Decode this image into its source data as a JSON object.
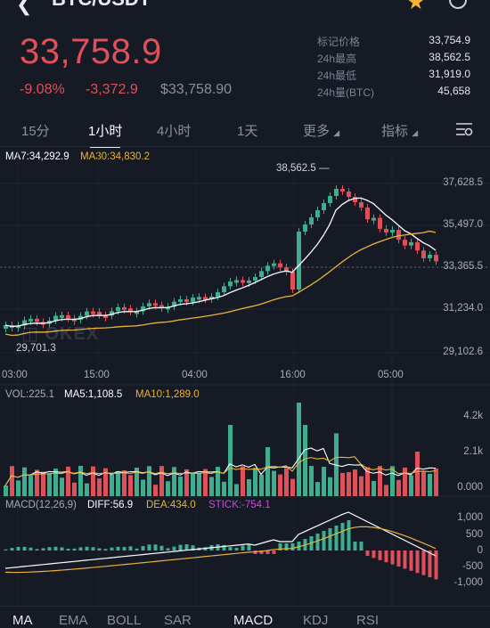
{
  "header": {
    "title": "BTC/USDT"
  },
  "price": {
    "last": "33,758.9",
    "change_pct": "-9.08%",
    "change_abs": "-3,372.9",
    "usd": "$33,758.90"
  },
  "stats": [
    {
      "label": "标记价格",
      "value": "33,754.9"
    },
    {
      "label": "24h最高",
      "value": "38,562.5"
    },
    {
      "label": "24h最低",
      "value": "31,919.0"
    },
    {
      "label": "24h量(BTC)",
      "value": "45,658"
    }
  ],
  "timeframes": [
    "15分",
    "1小时",
    "4小时",
    "1天"
  ],
  "more_label": "更多",
  "indicator_label": "指标",
  "main_chart": {
    "ma7": "MA7:34,292.9",
    "ma30": "MA30:34,830.2",
    "y_labels": [
      "37,628.5",
      "35,497.0",
      "33,365.5",
      "31,234.0",
      "29,102.6"
    ],
    "x_labels": [
      "03:00",
      "15:00",
      "04:00",
      "16:00",
      "05:00"
    ],
    "high_mark": "38,562.5",
    "low_mark": "29,701.3",
    "watermark": "OKEX"
  },
  "volume_chart": {
    "vol": "VOL:225.1",
    "ma5": "MA5:1,108.5",
    "ma10": "MA10:1,289.0",
    "y_labels": [
      "4.2k",
      "2.1k",
      "0.000"
    ]
  },
  "macd_chart": {
    "params": "MACD(12,26,9)",
    "diff": "DIFF:56.9",
    "dea": "DEA:434.0",
    "stick": "STICK:-754.1",
    "y_labels": [
      "1,000",
      "500",
      "0",
      "-500",
      "-1,000"
    ]
  },
  "indicator_tabs": [
    "MA",
    "EMA",
    "BOLL",
    "SAR",
    "MACD",
    "KDJ",
    "RSI"
  ],
  "colors": {
    "up": "#3fae8f",
    "down": "#e0505a",
    "ma_white": "#ffffff",
    "ma_yellow": "#e9b33c",
    "stick_purple": "#c94ad8"
  }
}
